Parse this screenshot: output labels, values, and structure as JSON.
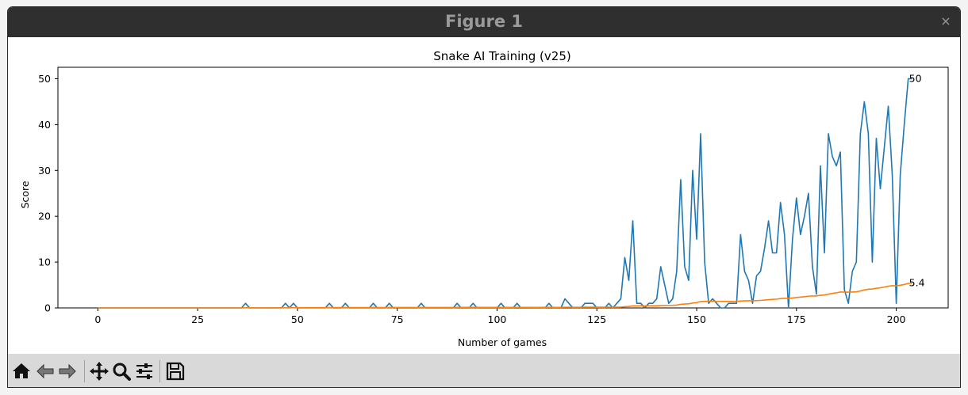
{
  "window": {
    "title": "Figure 1",
    "close_glyph": "×"
  },
  "toolbar": {
    "buttons": [
      {
        "name": "home-icon"
      },
      {
        "name": "back-icon"
      },
      {
        "name": "forward-icon"
      },
      {
        "name": "pan-icon"
      },
      {
        "name": "zoom-icon"
      },
      {
        "name": "configure-subplots-icon"
      },
      {
        "name": "save-icon"
      }
    ]
  },
  "chart_data": {
    "type": "line",
    "title": "Snake AI Training (v25)",
    "xlabel": "Number of games",
    "ylabel": "Score",
    "xlim": [
      -10,
      213
    ],
    "ylim": [
      0,
      52.5
    ],
    "xticks": [
      0,
      25,
      50,
      75,
      100,
      125,
      150,
      175,
      200
    ],
    "yticks": [
      0,
      10,
      20,
      30,
      40,
      50
    ],
    "grid": false,
    "series": [
      {
        "color": "#1f77b4",
        "values": [
          0,
          0,
          0,
          0,
          0,
          0,
          0,
          0,
          0,
          0,
          0,
          0,
          0,
          0,
          0,
          0,
          0,
          0,
          0,
          0,
          0,
          0,
          0,
          0,
          0,
          0,
          0,
          0,
          0,
          0,
          0,
          0,
          0,
          0,
          0,
          0,
          0,
          1,
          0,
          0,
          0,
          0,
          0,
          0,
          0,
          0,
          0,
          1,
          0,
          1,
          0,
          0,
          0,
          0,
          0,
          0,
          0,
          0,
          1,
          0,
          0,
          0,
          1,
          0,
          0,
          0,
          0,
          0,
          0,
          1,
          0,
          0,
          0,
          1,
          0,
          0,
          0,
          0,
          0,
          0,
          0,
          1,
          0,
          0,
          0,
          0,
          0,
          0,
          0,
          0,
          1,
          0,
          0,
          0,
          1,
          0,
          0,
          0,
          0,
          0,
          0,
          1,
          0,
          0,
          0,
          1,
          0,
          0,
          0,
          0,
          0,
          0,
          0,
          1,
          0,
          0,
          0,
          2,
          1,
          0,
          0,
          0,
          1,
          1,
          1,
          0,
          0,
          0,
          1,
          0,
          1,
          2,
          11,
          6,
          19,
          1,
          1,
          0,
          1,
          1,
          2,
          9,
          5,
          1,
          2,
          8,
          28,
          9,
          6,
          30,
          15,
          38,
          10,
          1,
          2,
          1,
          0,
          0,
          1,
          1,
          1,
          16,
          8,
          6,
          1,
          7,
          8,
          13,
          19,
          12,
          12,
          23,
          16,
          0,
          15,
          24,
          16,
          20,
          25,
          9,
          3,
          31,
          12,
          38,
          33,
          31,
          34,
          4,
          1,
          8,
          10,
          38,
          45,
          38,
          10,
          37,
          26,
          35,
          44,
          29,
          1,
          29,
          40,
          50,
          50
        ]
      },
      {
        "color": "#ff7f0e",
        "values": [
          0,
          0,
          0,
          0,
          0,
          0,
          0,
          0,
          0,
          0,
          0,
          0,
          0,
          0,
          0,
          0,
          0,
          0,
          0,
          0,
          0,
          0,
          0,
          0,
          0,
          0,
          0,
          0,
          0,
          0,
          0,
          0,
          0,
          0,
          0,
          0,
          0,
          0.03,
          0.03,
          0.03,
          0.02,
          0.02,
          0.02,
          0.02,
          0.02,
          0.02,
          0.02,
          0.04,
          0.04,
          0.06,
          0.06,
          0.06,
          0.06,
          0.05,
          0.05,
          0.05,
          0.05,
          0.05,
          0.07,
          0.07,
          0.07,
          0.07,
          0.08,
          0.08,
          0.08,
          0.08,
          0.08,
          0.07,
          0.07,
          0.09,
          0.09,
          0.08,
          0.08,
          0.09,
          0.09,
          0.09,
          0.09,
          0.09,
          0.09,
          0.09,
          0.09,
          0.1,
          0.1,
          0.1,
          0.1,
          0.1,
          0.1,
          0.1,
          0.1,
          0.1,
          0.11,
          0.11,
          0.11,
          0.11,
          0.12,
          0.12,
          0.11,
          0.11,
          0.11,
          0.11,
          0.11,
          0.12,
          0.12,
          0.12,
          0.12,
          0.13,
          0.13,
          0.13,
          0.13,
          0.12,
          0.12,
          0.12,
          0.12,
          0.13,
          0.13,
          0.13,
          0.13,
          0.15,
          0.15,
          0.15,
          0.15,
          0.15,
          0.16,
          0.16,
          0.17,
          0.17,
          0.17,
          0.16,
          0.17,
          0.17,
          0.17,
          0.19,
          0.27,
          0.31,
          0.45,
          0.45,
          0.46,
          0.45,
          0.46,
          0.46,
          0.47,
          0.53,
          0.56,
          0.56,
          0.57,
          0.62,
          0.8,
          0.86,
          0.89,
          1.07,
          1.16,
          1.39,
          1.44,
          1.44,
          1.44,
          1.44,
          1.43,
          1.42,
          1.42,
          1.42,
          1.41,
          1.5,
          1.54,
          1.57,
          1.57,
          1.6,
          1.64,
          1.71,
          1.81,
          1.87,
          1.92,
          2.04,
          2.11,
          2.1,
          2.17,
          2.29,
          2.36,
          2.45,
          2.57,
          2.6,
          2.61,
          2.77,
          2.82,
          3.01,
          3.16,
          3.3,
          3.46,
          3.46,
          3.44,
          3.47,
          3.51,
          3.7,
          3.92,
          4.09,
          4.13,
          4.29,
          4.39,
          4.55,
          4.74,
          4.85,
          4.83,
          4.95,
          5.11,
          5.36,
          5.4
        ]
      }
    ],
    "annotations": [
      {
        "x": 203,
        "y": 50,
        "text": "50"
      },
      {
        "x": 203,
        "y": 5.4,
        "text": "5.4"
      }
    ]
  }
}
